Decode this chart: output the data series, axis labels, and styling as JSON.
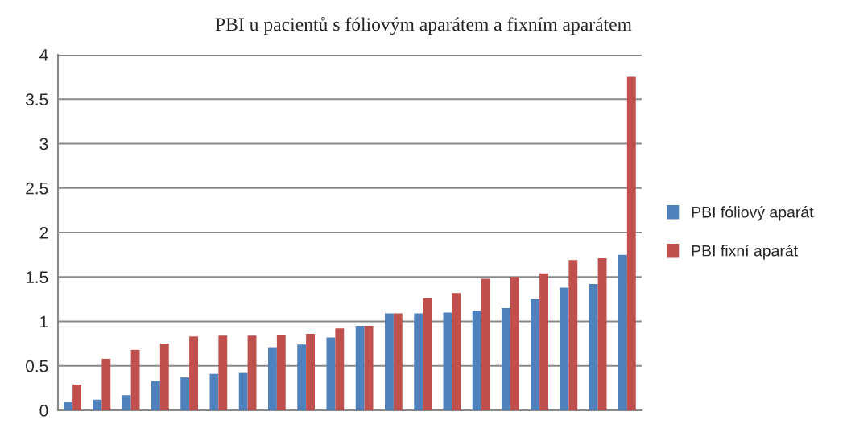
{
  "chart_data": {
    "type": "bar",
    "title": "PBI u pacientů s fóliovým aparátem a fixním aparátem",
    "categories": [
      null,
      null,
      null,
      null,
      null,
      null,
      null,
      null,
      null,
      null,
      null,
      null,
      null,
      null,
      null,
      null,
      null,
      null,
      null,
      null
    ],
    "series": [
      {
        "name": "PBI fóliový aparát",
        "color": "#4f81bd",
        "values": [
          0.09,
          0.12,
          0.17,
          0.33,
          0.37,
          0.41,
          0.42,
          0.71,
          0.74,
          0.82,
          0.95,
          1.09,
          1.09,
          1.1,
          1.12,
          1.15,
          1.25,
          1.38,
          1.42,
          1.75
        ]
      },
      {
        "name": "PBI fixní aparát",
        "color": "#c0504d",
        "values": [
          0.29,
          0.58,
          0.68,
          0.75,
          0.83,
          0.84,
          0.84,
          0.85,
          0.86,
          0.92,
          0.95,
          1.09,
          1.26,
          1.32,
          1.48,
          1.5,
          1.54,
          1.69,
          1.71,
          3.75
        ]
      }
    ],
    "ylim": [
      0,
      4
    ],
    "yticks": [
      0,
      0.5,
      1,
      1.5,
      2,
      2.5,
      3,
      3.5,
      4
    ],
    "grid": "y",
    "legend": "right"
  }
}
